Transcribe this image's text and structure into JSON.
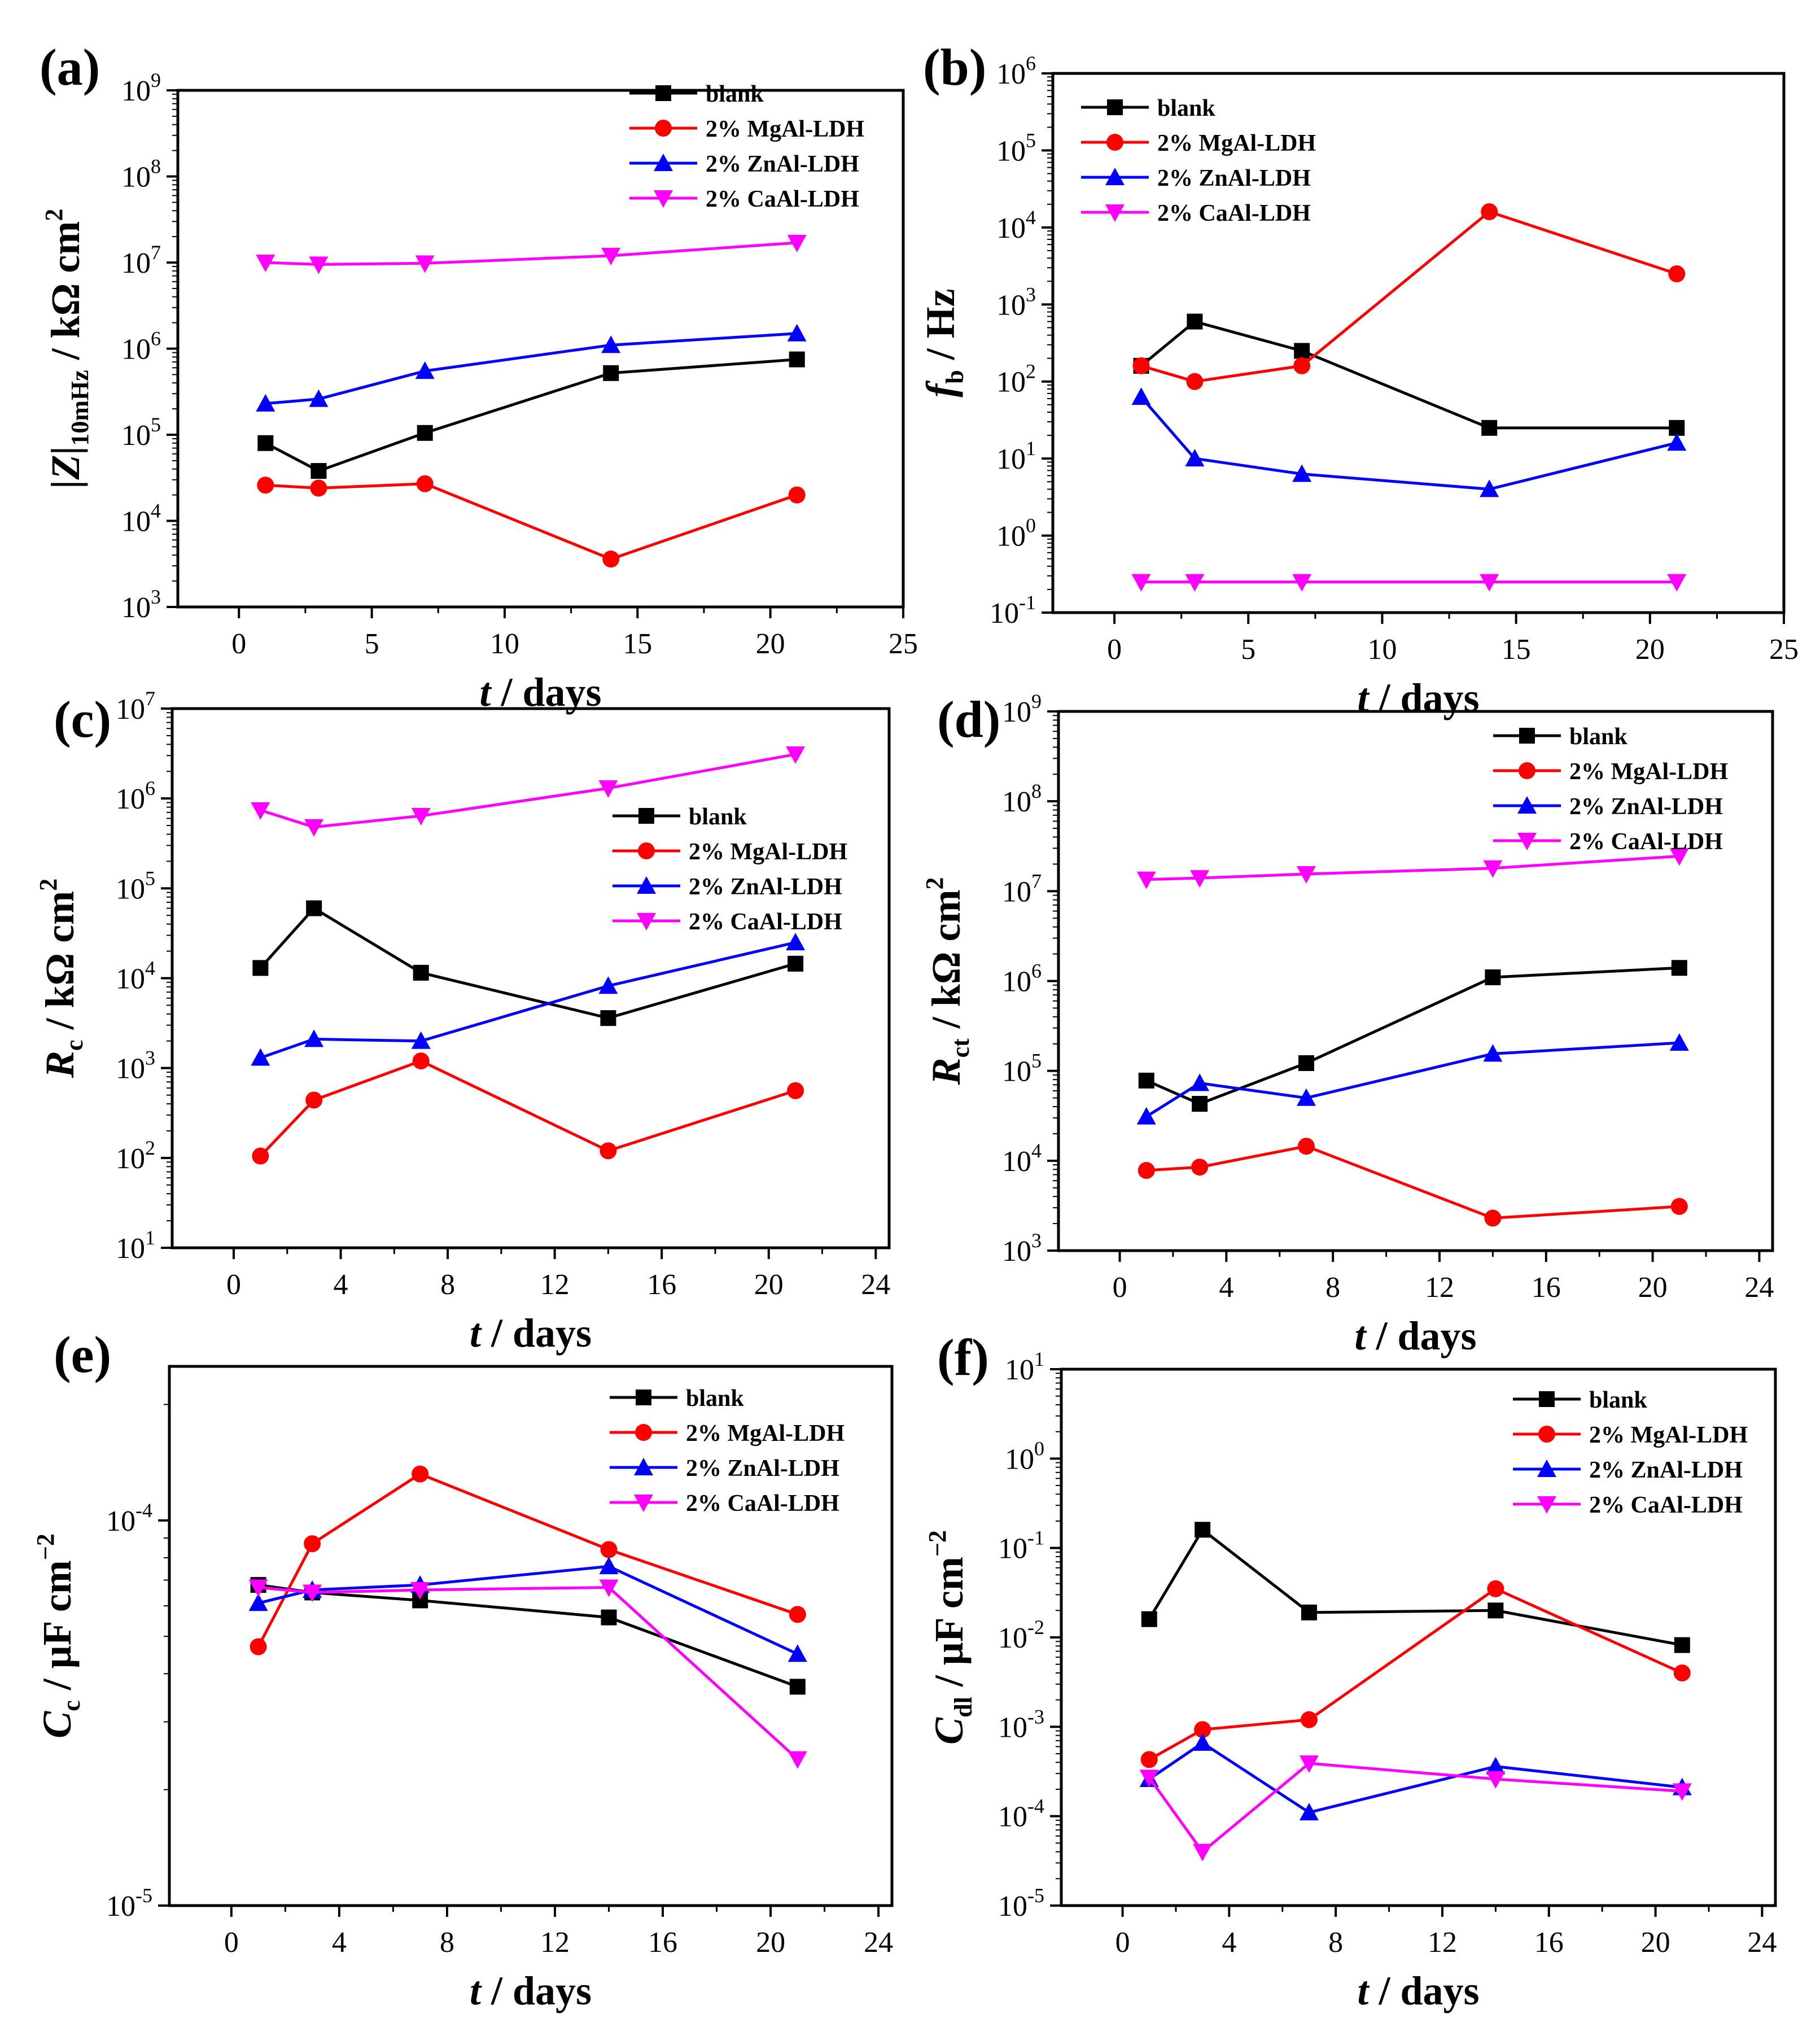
{
  "series_styles": [
    {
      "key": "blank",
      "color": "#000000",
      "marker": "square"
    },
    {
      "key": "mgal",
      "color": "#ff0000",
      "marker": "circle"
    },
    {
      "key": "znal",
      "color": "#0000ff",
      "marker": "triangle-up"
    },
    {
      "key": "caal",
      "color": "#ff00ff",
      "marker": "triangle-down"
    }
  ],
  "chart_data": [
    {
      "id": "a",
      "panel_label": "(a)",
      "type": "line",
      "yscale": "log",
      "xlabel": {
        "italic": "t",
        "rest": " / days"
      },
      "ylabel": {
        "main": "|Z|",
        "sub": "10mHz",
        "rest": " / kΩ cm",
        "sup": "2"
      },
      "xlim": [
        -2.3,
        25
      ],
      "xticks": [
        0,
        5,
        10,
        15,
        20,
        25
      ],
      "ylim_exp": [
        3,
        9
      ],
      "legend_position": "top-right",
      "x": [
        1,
        3,
        7,
        14,
        21
      ],
      "series": [
        {
          "key": "blank",
          "name": "blank",
          "values": [
            80000,
            38000,
            105000,
            520000,
            750000
          ]
        },
        {
          "key": "mgal",
          "name": "2% MgAl-LDH",
          "values": [
            26000,
            24000,
            27000,
            3600,
            20000
          ]
        },
        {
          "key": "znal",
          "name": "2% ZnAl-LDH",
          "values": [
            230000,
            260000,
            550000,
            1100000,
            1500000
          ]
        },
        {
          "key": "caal",
          "name": "2% CaAl-LDH",
          "values": [
            10000000,
            9500000,
            9800000,
            12000000,
            17000000
          ]
        }
      ]
    },
    {
      "id": "b",
      "panel_label": "(b)",
      "type": "line",
      "yscale": "log",
      "xlabel": {
        "italic": "t",
        "rest": " / days"
      },
      "ylabel": {
        "main": "f",
        "sub": "b",
        "rest": " / Hz",
        "sup": ""
      },
      "xlim": [
        -2.3,
        25
      ],
      "xticks": [
        0,
        5,
        10,
        15,
        20,
        25
      ],
      "ylim_exp": [
        -1,
        6
      ],
      "legend_position": "top-left",
      "x": [
        1,
        3,
        7,
        14,
        21
      ],
      "series": [
        {
          "key": "blank",
          "name": "blank",
          "values": [
            160,
            600,
            250,
            25,
            25
          ]
        },
        {
          "key": "mgal",
          "name": "2% MgAl-LDH",
          "values": [
            160,
            100,
            160,
            16000,
            2500
          ]
        },
        {
          "key": "znal",
          "name": "2% ZnAl-LDH",
          "values": [
            63,
            10,
            6.3,
            4,
            16
          ]
        },
        {
          "key": "caal",
          "name": "2% CaAl-LDH",
          "values": [
            0.25,
            0.25,
            0.25,
            0.25,
            0.25
          ]
        }
      ]
    },
    {
      "id": "c",
      "panel_label": "(c)",
      "type": "line",
      "yscale": "log",
      "xlabel": {
        "italic": "t",
        "rest": " / days"
      },
      "ylabel": {
        "main": "R",
        "sub": "c",
        "rest": " / kΩ cm",
        "sup": "2"
      },
      "xlim": [
        -2.3,
        24.5
      ],
      "xticks": [
        0,
        4,
        8,
        12,
        16,
        20,
        24
      ],
      "ylim_exp": [
        1,
        7
      ],
      "legend_position": "center-right",
      "x": [
        1,
        3,
        7,
        14,
        21
      ],
      "series": [
        {
          "key": "blank",
          "name": "blank",
          "values": [
            13000,
            60000,
            11500,
            3600,
            14500
          ]
        },
        {
          "key": "mgal",
          "name": "2% MgAl-LDH",
          "values": [
            105,
            440,
            1200,
            120,
            560
          ]
        },
        {
          "key": "znal",
          "name": "2% ZnAl-LDH",
          "values": [
            1300,
            2100,
            2000,
            8200,
            25000
          ]
        },
        {
          "key": "caal",
          "name": "2% CaAl-LDH",
          "values": [
            740000,
            480000,
            640000,
            1300000,
            3100000
          ]
        }
      ]
    },
    {
      "id": "d",
      "panel_label": "(d)",
      "type": "line",
      "yscale": "log",
      "xlabel": {
        "italic": "t",
        "rest": " / days"
      },
      "ylabel": {
        "main": "R",
        "sub": "ct",
        "rest": " / kΩ cm",
        "sup": "2"
      },
      "xlim": [
        -2.3,
        24.5
      ],
      "xticks": [
        0,
        4,
        8,
        12,
        16,
        20,
        24
      ],
      "ylim_exp": [
        3,
        9
      ],
      "legend_position": "top-right",
      "x": [
        1,
        3,
        7,
        14,
        21
      ],
      "series": [
        {
          "key": "blank",
          "name": "blank",
          "values": [
            78000,
            43000,
            122000,
            1100000,
            1400000
          ]
        },
        {
          "key": "mgal",
          "name": "2% MgAl-LDH",
          "values": [
            7800,
            8500,
            14500,
            2300,
            3100
          ]
        },
        {
          "key": "znal",
          "name": "2% ZnAl-LDH",
          "values": [
            31000,
            73000,
            50000,
            155000,
            205000
          ]
        },
        {
          "key": "caal",
          "name": "2% CaAl-LDH",
          "values": [
            13500000,
            14000000,
            15500000,
            18000000,
            24500000
          ]
        }
      ]
    },
    {
      "id": "e",
      "panel_label": "(e)",
      "type": "line",
      "yscale": "log",
      "xlabel": {
        "italic": "t",
        "rest": " / days"
      },
      "ylabel": {
        "main": "C",
        "sub": "c",
        "rest": " / μF cm",
        "sup": "−2"
      },
      "xlim": [
        -2.3,
        24.5
      ],
      "xticks": [
        0,
        4,
        8,
        12,
        16,
        20,
        24
      ],
      "ylim_exp": [
        -5,
        -3.6
      ],
      "ytick_exps": [
        -5,
        -4
      ],
      "legend_position": "top-right",
      "x": [
        1,
        3,
        7,
        14,
        21
      ],
      "series": [
        {
          "key": "blank",
          "name": "blank",
          "values": [
            6.8e-05,
            6.5e-05,
            6.2e-05,
            5.6e-05,
            3.7e-05
          ]
        },
        {
          "key": "mgal",
          "name": "2% MgAl-LDH",
          "values": [
            4.7e-05,
            8.7e-05,
            0.000132,
            8.4e-05,
            5.7e-05
          ]
        },
        {
          "key": "znal",
          "name": "2% ZnAl-LDH",
          "values": [
            6.1e-05,
            6.6e-05,
            6.8e-05,
            7.6e-05,
            4.5e-05
          ]
        },
        {
          "key": "caal",
          "name": "2% CaAl-LDH",
          "values": [
            6.7e-05,
            6.5e-05,
            6.6e-05,
            6.7e-05,
            2.4e-05
          ]
        }
      ]
    },
    {
      "id": "f",
      "panel_label": "(f)",
      "type": "line",
      "yscale": "log",
      "xlabel": {
        "italic": "t",
        "rest": " / days"
      },
      "ylabel": {
        "main": "C",
        "sub": "dl",
        "rest": " / μF cm",
        "sup": "−2"
      },
      "xlim": [
        -2.3,
        24.5
      ],
      "xticks": [
        0,
        4,
        8,
        12,
        16,
        20,
        24
      ],
      "ylim_exp": [
        -5,
        1
      ],
      "legend_position": "top-right",
      "x": [
        1,
        3,
        7,
        14,
        21
      ],
      "series": [
        {
          "key": "blank",
          "name": "blank",
          "values": [
            0.016,
            0.16,
            0.019,
            0.02,
            0.0082
          ]
        },
        {
          "key": "mgal",
          "name": "2% MgAl-LDH",
          "values": [
            0.00043,
            0.00093,
            0.0012,
            0.035,
            0.004
          ]
        },
        {
          "key": "znal",
          "name": "2% ZnAl-LDH",
          "values": [
            0.00026,
            0.00066,
            0.00011,
            0.00036,
            0.00021
          ]
        },
        {
          "key": "caal",
          "name": "2% CaAl-LDH",
          "values": [
            0.00027,
            4e-05,
            0.00039,
            0.00026,
            0.00019
          ]
        }
      ]
    }
  ]
}
